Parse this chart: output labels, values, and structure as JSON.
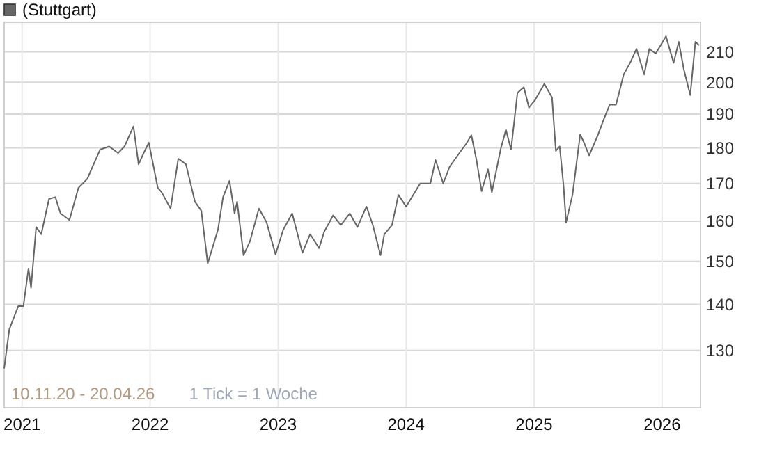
{
  "chart_data": {
    "type": "line",
    "log": true,
    "grid": true,
    "legend": "top left",
    "tick_labels": "xy",
    "annotations": [
      "10.11.20 - 20.04.26",
      "1 Tick = 1 Woche"
    ],
    "xlim": [
      2020.86,
      2026.3
    ],
    "xticks": [
      2021,
      2022,
      2023,
      2024,
      2025,
      2026
    ],
    "ylim": [
      118.6,
      220.2
    ],
    "yticks": [
      130,
      140,
      150,
      160,
      170,
      180,
      190,
      200,
      210
    ],
    "marker": "none",
    "line_style": "solid",
    "series": [
      {
        "name": "(Stuttgart)",
        "color": "#666666",
        "x": [
          2020.86,
          2020.9,
          2020.97,
          2021.01,
          2021.05,
          2021.07,
          2021.11,
          2021.15,
          2021.21,
          2021.26,
          2021.3,
          2021.37,
          2021.44,
          2021.51,
          2021.55,
          2021.61,
          2021.68,
          2021.75,
          2021.8,
          2021.87,
          2021.91,
          2021.95,
          2021.99,
          2022.06,
          2022.09,
          2022.16,
          2022.22,
          2022.28,
          2022.35,
          2022.4,
          2022.45,
          2022.53,
          2022.57,
          2022.62,
          2022.66,
          2022.68,
          2022.73,
          2022.78,
          2022.85,
          2022.91,
          2022.98,
          2023.04,
          2023.11,
          2023.19,
          2023.25,
          2023.32,
          2023.36,
          2023.43,
          2023.49,
          2023.56,
          2023.62,
          2023.69,
          2023.74,
          2023.8,
          2023.83,
          2023.89,
          2023.94,
          2024.0,
          2024.11,
          2024.19,
          2024.23,
          2024.29,
          2024.34,
          2024.41,
          2024.47,
          2024.51,
          2024.55,
          2024.59,
          2024.64,
          2024.67,
          2024.74,
          2024.78,
          2024.82,
          2024.87,
          2024.92,
          2024.96,
          2025.01,
          2025.08,
          2025.14,
          2025.17,
          2025.2,
          2025.23,
          2025.25,
          2025.3,
          2025.36,
          2025.39,
          2025.43,
          2025.5,
          2025.54,
          2025.59,
          2025.64,
          2025.7,
          2025.75,
          2025.8,
          2025.86,
          2025.9,
          2025.95,
          2026.03,
          2026.09,
          2026.13,
          2026.17,
          2026.22,
          2026.26,
          2026.29
        ],
        "values": [
          126.3,
          134.5,
          139.6,
          139.6,
          148.3,
          143.8,
          158.5,
          156.7,
          165.8,
          166.3,
          162.0,
          160.3,
          168.8,
          171.3,
          174.6,
          179.5,
          180.4,
          178.5,
          180.4,
          186.3,
          175.3,
          178.5,
          181.5,
          168.8,
          167.6,
          163.3,
          176.9,
          175.3,
          165.1,
          162.7,
          149.5,
          157.8,
          166.3,
          170.7,
          162.0,
          165.1,
          151.5,
          154.9,
          163.3,
          159.7,
          151.7,
          157.8,
          162.0,
          152.1,
          156.7,
          153.2,
          157.3,
          161.5,
          159.0,
          162.0,
          158.5,
          163.8,
          159.0,
          151.5,
          156.7,
          159.0,
          166.9,
          163.8,
          170.0,
          170.0,
          176.5,
          170.0,
          174.6,
          178.2,
          181.2,
          183.7,
          176.5,
          167.9,
          173.9,
          167.6,
          179.8,
          185.3,
          179.5,
          196.6,
          198.4,
          192.0,
          194.5,
          199.5,
          195.2,
          179.1,
          180.4,
          169.4,
          159.7,
          166.9,
          183.9,
          181.5,
          177.8,
          183.9,
          188.0,
          192.9,
          192.9,
          202.5,
          206.3,
          211.0,
          202.5,
          211.0,
          209.4,
          215.3,
          206.3,
          213.4,
          204.1,
          195.9,
          213.4,
          212.2
        ]
      }
    ]
  }
}
